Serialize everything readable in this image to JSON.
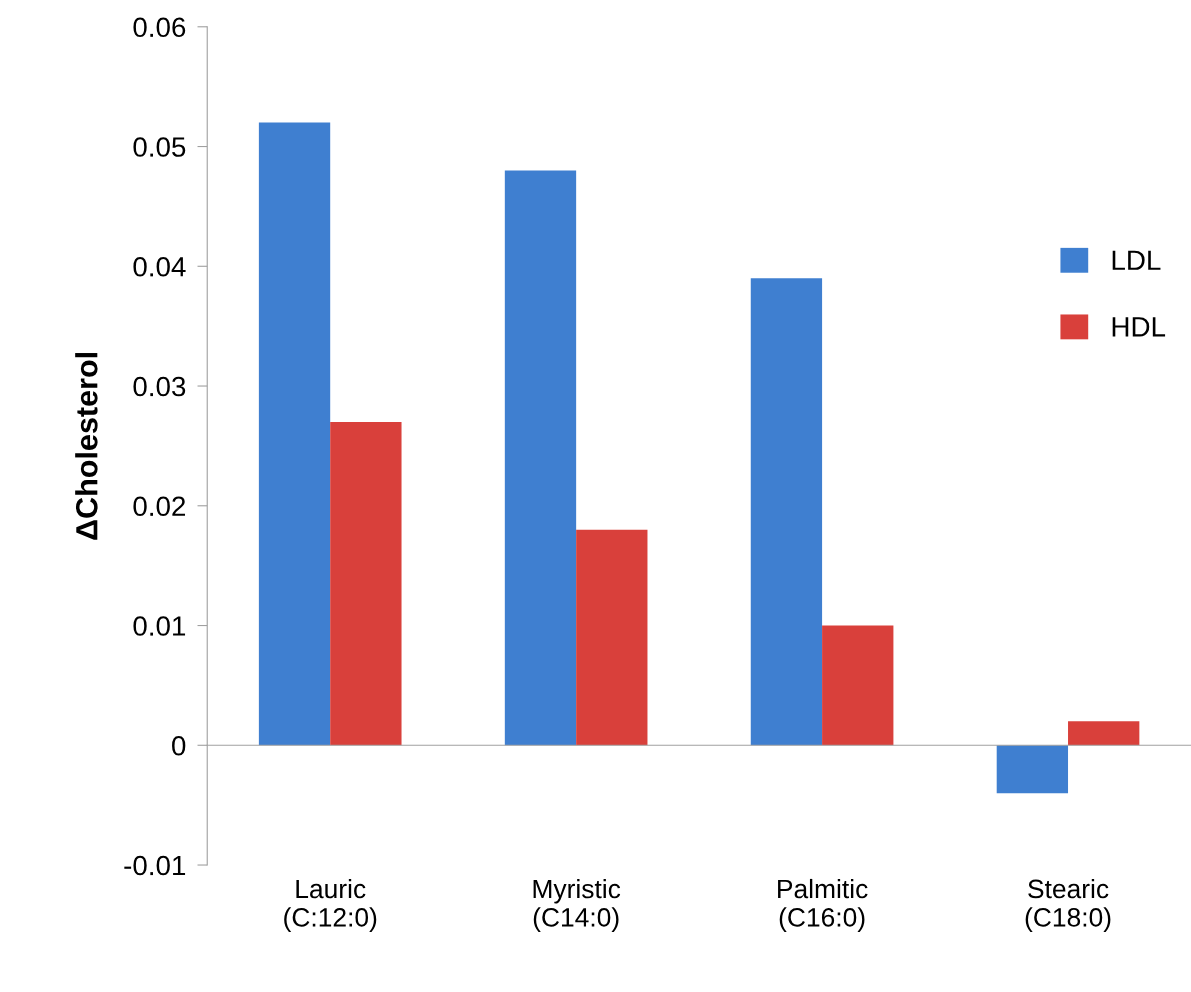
{
  "chart_data": {
    "type": "bar",
    "ylabel": "ΔCholesterol",
    "categories": [
      "Lauric\n(C:12:0)",
      "Myristic\n(C14:0)",
      "Palmitic\n(C16:0)",
      "Stearic\n(C18:0)"
    ],
    "series": [
      {
        "name": "LDL",
        "color": "#3f7fd0",
        "values": [
          0.052,
          0.048,
          0.039,
          -0.004
        ]
      },
      {
        "name": "HDL",
        "color": "#d9403b",
        "values": [
          0.027,
          0.018,
          0.01,
          0.002
        ]
      }
    ],
    "ylim": [
      -0.01,
      0.06
    ],
    "yticks": [
      -0.01,
      0,
      0.01,
      0.02,
      0.03,
      0.04,
      0.05,
      0.06
    ],
    "legend": "right"
  }
}
